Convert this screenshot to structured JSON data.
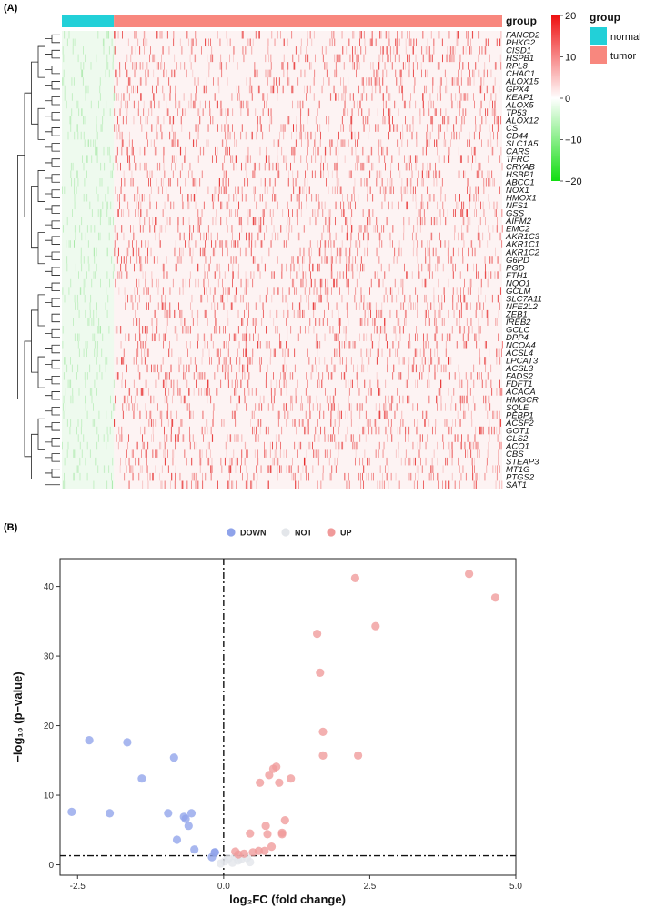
{
  "panel_a_label": "(A)",
  "panel_b_label": "(B)",
  "heatmap": {
    "group_header": "group",
    "legend_title": "group",
    "groups": [
      {
        "name": "normal",
        "color": "#22d0d8"
      },
      {
        "name": "tumor",
        "color": "#f8877e"
      }
    ],
    "colorbar_ticks": [
      "20",
      "10",
      "0",
      "−10",
      "−20"
    ],
    "colorbar_colors": {
      "high": "#ee1111",
      "mid": "#ffffff",
      "low": "#11dd11"
    },
    "normal_fraction": 0.118,
    "genes": [
      "FANCD2",
      "PHKG2",
      "CISD1",
      "HSPB1",
      "RPL8",
      "CHAC1",
      "ALOX15",
      "GPX4",
      "KEAP1",
      "ALOX5",
      "TP53",
      "ALOX12",
      "CS",
      "CD44",
      "SLC1A5",
      "CARS",
      "TFRC",
      "CRYAB",
      "HSBP1",
      "ABCC1",
      "NOX1",
      "HMOX1",
      "NFS1",
      "GSS",
      "AIFM2",
      "EMC2",
      "AKR1C3",
      "AKR1C1",
      "AKR1C2",
      "G6PD",
      "PGD",
      "FTH1",
      "NQO1",
      "GCLM",
      "SLC7A11",
      "NFE2L2",
      "ZEB1",
      "IREB2",
      "GCLC",
      "DPP4",
      "NCOA4",
      "ACSL4",
      "LPCAT3",
      "ACSL3",
      "FADS2",
      "FDFT1",
      "ACACA",
      "HMGCR",
      "SQLE",
      "PEBP1",
      "ACSF2",
      "GOT1",
      "GLS2",
      "ACO1",
      "CBS",
      "STEAP3",
      "MT1G",
      "PTGS2",
      "SAT1"
    ]
  },
  "chart_data": {
    "type": "scatter",
    "title": "",
    "xlabel": "log₂FC (fold change)",
    "ylabel": "−log₁₀ (p−value)",
    "xlim": [
      -2.8,
      5.0
    ],
    "ylim": [
      -1.5,
      44
    ],
    "xticks": [
      "-2.5",
      "0.0",
      "2.5",
      "5.0"
    ],
    "yticks": [
      "0",
      "10",
      "20",
      "30",
      "40"
    ],
    "vline_x": 0,
    "hline_y": 1.3,
    "legend_position": "top",
    "series": [
      {
        "name": "DOWN",
        "color": "#8fa3ea",
        "x": [
          -2.6,
          -2.3,
          -1.95,
          -1.65,
          -1.4,
          -0.95,
          -0.85,
          -0.8,
          -0.68,
          -0.65,
          -0.6,
          -0.55,
          -0.5,
          -0.2,
          -0.15,
          -0.15
        ],
        "y": [
          7.6,
          17.9,
          7.4,
          17.6,
          12.4,
          7.4,
          15.4,
          3.6,
          6.9,
          6.6,
          5.6,
          7.4,
          2.2,
          1.1,
          1.8,
          1.8
        ]
      },
      {
        "name": "NOT",
        "color": "#dcdcdc",
        "x": [
          -0.05,
          0.02,
          0.08,
          0.15,
          0.2,
          0.25,
          0.3,
          0.4,
          0.45
        ],
        "y": [
          0.2,
          0.5,
          0.9,
          0.3,
          1.2,
          0.6,
          0.8,
          1.0,
          0.4
        ],
        "point_color": "#e3e6ea"
      },
      {
        "name": "UP",
        "color": "#f09a9a",
        "x": [
          0.2,
          0.25,
          0.35,
          0.45,
          0.5,
          0.6,
          0.62,
          0.7,
          0.72,
          0.75,
          0.78,
          0.82,
          0.85,
          0.9,
          0.95,
          1.0,
          1.0,
          1.05,
          1.15,
          1.6,
          1.65,
          1.7,
          1.7,
          2.25,
          2.3,
          2.6,
          4.2,
          4.65
        ],
        "y": [
          1.9,
          1.5,
          1.6,
          4.5,
          1.8,
          2.0,
          11.8,
          2.0,
          5.6,
          4.4,
          12.9,
          2.6,
          13.8,
          14.1,
          11.8,
          4.4,
          4.6,
          6.4,
          12.4,
          33.2,
          27.6,
          19.1,
          15.7,
          41.2,
          15.7,
          34.3,
          41.8,
          38.4
        ]
      }
    ]
  }
}
